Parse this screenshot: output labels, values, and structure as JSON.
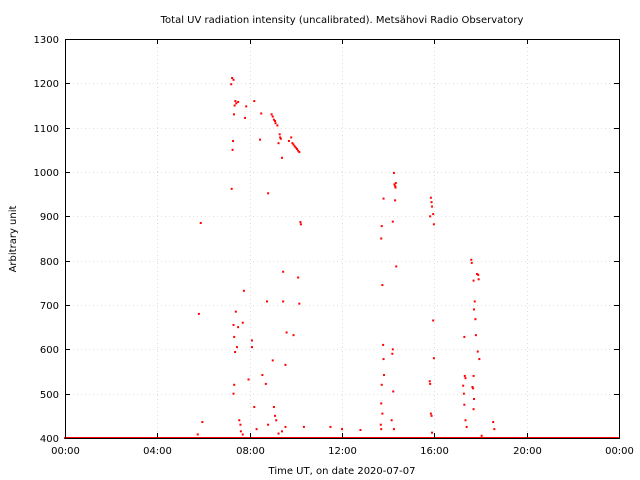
{
  "chart_data": {
    "type": "scatter",
    "title": "Total UV radiation intensity (uncalibrated). Metsähovi Radio Observatory",
    "xlabel": "Time UT, on date 2020-07-07",
    "ylabel": "Arbitrary unit",
    "x_unit": "hours UT",
    "xlim": [
      0,
      24
    ],
    "ylim": [
      400,
      1300
    ],
    "x_tick_labels": [
      "00:00",
      "04:00",
      "08:00",
      "12:00",
      "16:00",
      "20:00",
      "00:00"
    ],
    "x_tick_values": [
      0,
      4,
      8,
      12,
      16,
      20,
      24
    ],
    "y_ticks": [
      400,
      500,
      600,
      700,
      800,
      900,
      1000,
      1100,
      1200,
      1300
    ],
    "grid": true,
    "point_color": "#ff0000",
    "baseline_value": 400,
    "series": [
      {
        "points": [
          [
            5.75,
            408
          ],
          [
            5.8,
            680
          ],
          [
            5.88,
            885
          ],
          [
            5.95,
            436
          ],
          [
            7.2,
            1198
          ],
          [
            7.24,
            1212
          ],
          [
            7.3,
            1208
          ],
          [
            7.22,
            962
          ],
          [
            7.28,
            1070
          ],
          [
            7.26,
            1050
          ],
          [
            7.32,
            1130
          ],
          [
            7.35,
            1150
          ],
          [
            7.38,
            1160
          ],
          [
            7.42,
            1155
          ],
          [
            7.5,
            1158
          ],
          [
            7.3,
            655
          ],
          [
            7.33,
            628
          ],
          [
            7.37,
            594
          ],
          [
            7.4,
            685
          ],
          [
            7.45,
            605
          ],
          [
            7.5,
            650
          ],
          [
            7.3,
            500
          ],
          [
            7.33,
            520
          ],
          [
            7.55,
            440
          ],
          [
            7.6,
            430
          ],
          [
            7.62,
            415
          ],
          [
            7.7,
            408
          ],
          [
            7.7,
            660
          ],
          [
            7.8,
            1122
          ],
          [
            7.85,
            1148
          ],
          [
            7.95,
            532
          ],
          [
            7.75,
            732
          ],
          [
            8.1,
            620
          ],
          [
            8.1,
            605
          ],
          [
            8.2,
            1160
          ],
          [
            8.2,
            470
          ],
          [
            8.3,
            420
          ],
          [
            8.5,
            1132
          ],
          [
            8.45,
            1073
          ],
          [
            8.55,
            542
          ],
          [
            8.7,
            522
          ],
          [
            8.8,
            952
          ],
          [
            8.75,
            708
          ],
          [
            8.8,
            430
          ],
          [
            8.95,
            1130
          ],
          [
            9.0,
            1125
          ],
          [
            9.05,
            1118
          ],
          [
            9.1,
            1115
          ],
          [
            9.12,
            1110
          ],
          [
            9.2,
            1105
          ],
          [
            9.25,
            1065
          ],
          [
            9.3,
            1085
          ],
          [
            9.32,
            1078
          ],
          [
            9.35,
            1075
          ],
          [
            9.4,
            1032
          ],
          [
            9.45,
            708
          ],
          [
            9.45,
            775
          ],
          [
            9.55,
            565
          ],
          [
            9.6,
            638
          ],
          [
            9.7,
            1070
          ],
          [
            9.8,
            1078
          ],
          [
            9.85,
            1065
          ],
          [
            9.9,
            1062
          ],
          [
            9.95,
            1058
          ],
          [
            10.0,
            1055
          ],
          [
            10.05,
            1052
          ],
          [
            10.1,
            1048
          ],
          [
            10.15,
            1045
          ],
          [
            9.9,
            632
          ],
          [
            10.1,
            762
          ],
          [
            10.15,
            703
          ],
          [
            10.2,
            887
          ],
          [
            10.22,
            882
          ],
          [
            9.0,
            575
          ],
          [
            9.05,
            470
          ],
          [
            9.1,
            450
          ],
          [
            9.15,
            440
          ],
          [
            9.25,
            410
          ],
          [
            9.4,
            415
          ],
          [
            9.55,
            425
          ],
          [
            10.35,
            425
          ],
          [
            11.5,
            425
          ],
          [
            12.0,
            420
          ],
          [
            12.8,
            418
          ],
          [
            13.7,
            850
          ],
          [
            13.72,
            878
          ],
          [
            13.75,
            745
          ],
          [
            13.8,
            940
          ],
          [
            13.78,
            610
          ],
          [
            13.8,
            578
          ],
          [
            13.82,
            542
          ],
          [
            13.72,
            520
          ],
          [
            13.7,
            478
          ],
          [
            13.75,
            455
          ],
          [
            13.68,
            430
          ],
          [
            13.7,
            420
          ],
          [
            14.2,
            888
          ],
          [
            14.25,
            998
          ],
          [
            14.27,
            972
          ],
          [
            14.3,
            968
          ],
          [
            14.32,
            965
          ],
          [
            14.33,
            975
          ],
          [
            14.3,
            936
          ],
          [
            14.35,
            787
          ],
          [
            14.2,
            600
          ],
          [
            14.18,
            590
          ],
          [
            14.22,
            505
          ],
          [
            14.15,
            440
          ],
          [
            14.25,
            420
          ],
          [
            15.85,
            942
          ],
          [
            15.88,
            932
          ],
          [
            15.9,
            922
          ],
          [
            15.82,
            900
          ],
          [
            15.95,
            905
          ],
          [
            15.98,
            882
          ],
          [
            15.95,
            665
          ],
          [
            15.98,
            580
          ],
          [
            15.8,
            528
          ],
          [
            15.82,
            522
          ],
          [
            15.85,
            455
          ],
          [
            15.88,
            450
          ],
          [
            15.9,
            412
          ],
          [
            17.3,
            628
          ],
          [
            17.32,
            540
          ],
          [
            17.35,
            535
          ],
          [
            17.25,
            518
          ],
          [
            17.28,
            500
          ],
          [
            17.3,
            475
          ],
          [
            17.35,
            440
          ],
          [
            17.4,
            425
          ],
          [
            17.6,
            802
          ],
          [
            17.62,
            795
          ],
          [
            17.7,
            755
          ],
          [
            17.75,
            708
          ],
          [
            17.72,
            690
          ],
          [
            17.78,
            668
          ],
          [
            17.8,
            632
          ],
          [
            17.7,
            540
          ],
          [
            17.65,
            515
          ],
          [
            17.68,
            512
          ],
          [
            17.72,
            488
          ],
          [
            17.7,
            465
          ],
          [
            17.85,
            770
          ],
          [
            17.9,
            768
          ],
          [
            17.92,
            758
          ],
          [
            17.88,
            595
          ],
          [
            17.95,
            578
          ],
          [
            18.05,
            405
          ],
          [
            18.55,
            436
          ],
          [
            18.6,
            420
          ]
        ]
      }
    ]
  }
}
